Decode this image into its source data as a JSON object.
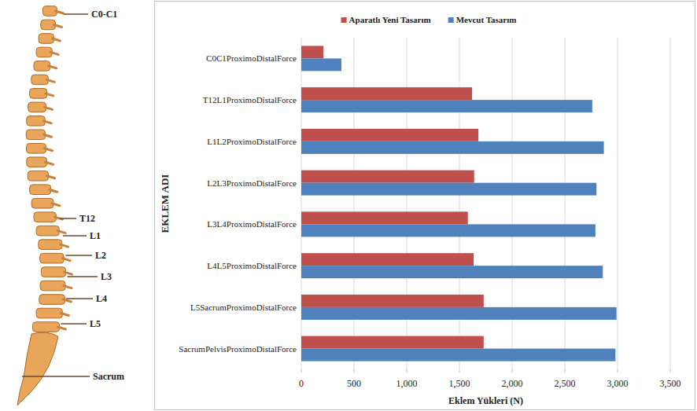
{
  "chart_data": {
    "type": "bar",
    "orientation": "horizontal",
    "grid": true,
    "legend": "top",
    "x_label": "Eklem Yükleri (N)",
    "y_label": "EKLEM ADI",
    "categories": [
      "C0C1ProximoDistalForce",
      "T12L1ProximoDistalForce",
      "L1L2ProximoDistalForce",
      "L2L3ProximoDistalForce",
      "L3L4ProximoDistalForce",
      "L4L5ProximoDistalForce",
      "L5SacrumProximoDistalForce",
      "SacrumPelvisProximoDistalForce"
    ],
    "series": [
      {
        "name": "Aparatlı Yeni Tasarım",
        "color": "#c0504d",
        "values": [
          210,
          1620,
          1680,
          1640,
          1580,
          1635,
          1730,
          1730
        ]
      },
      {
        "name": "Mevcut Tasarım",
        "color": "#4f81bd",
        "values": [
          380,
          2760,
          2870,
          2800,
          2790,
          2860,
          2990,
          2980
        ]
      }
    ],
    "xlim": [
      0,
      3500
    ],
    "xticks": [
      0,
      500,
      {
        "value": 1000,
        "label": "1,000"
      },
      {
        "value": 1500,
        "label": "1,500"
      },
      {
        "value": 2000,
        "label": "2,000"
      },
      {
        "value": 2500,
        "label": "2,500"
      },
      {
        "value": 3000,
        "label": "3,000"
      },
      {
        "value": 3500,
        "label": "3,500"
      }
    ]
  },
  "figure": {
    "spine_labels": [
      "C0-C1",
      "T12",
      "L1",
      "L2",
      "L3",
      "L4",
      "L5",
      "Sacrum"
    ]
  }
}
